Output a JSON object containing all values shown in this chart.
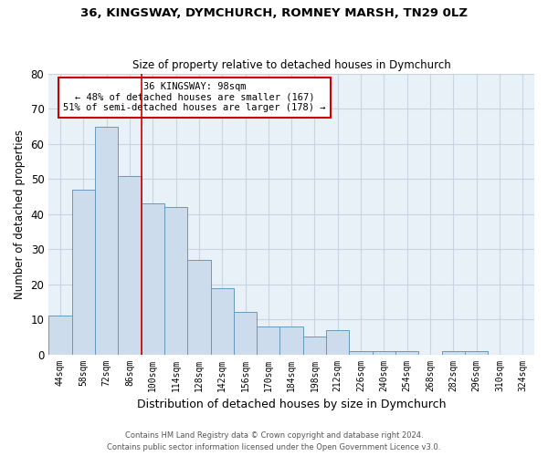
{
  "title1": "36, KINGSWAY, DYMCHURCH, ROMNEY MARSH, TN29 0LZ",
  "title2": "Size of property relative to detached houses in Dymchurch",
  "xlabel": "Distribution of detached houses by size in Dymchurch",
  "ylabel": "Number of detached properties",
  "categories": [
    "44sqm",
    "58sqm",
    "72sqm",
    "86sqm",
    "100sqm",
    "114sqm",
    "128sqm",
    "142sqm",
    "156sqm",
    "170sqm",
    "184sqm",
    "198sqm",
    "212sqm",
    "226sqm",
    "240sqm",
    "254sqm",
    "268sqm",
    "282sqm",
    "296sqm",
    "310sqm",
    "324sqm"
  ],
  "values": [
    11,
    47,
    65,
    51,
    43,
    42,
    27,
    19,
    12,
    8,
    8,
    5,
    7,
    1,
    1,
    1,
    0,
    1,
    1,
    0,
    0
  ],
  "bar_color": "#ccdcec",
  "bar_edge_color": "#6699bb",
  "red_line_x": 3.5,
  "annotation_line1": "36 KINGSWAY: 98sqm",
  "annotation_line2": "← 48% of detached houses are smaller (167)",
  "annotation_line3": "51% of semi-detached houses are larger (178) →",
  "annotation_box_color": "#ffffff",
  "annotation_box_edge": "#cc0000",
  "red_line_color": "#cc0000",
  "footer1": "Contains HM Land Registry data © Crown copyright and database right 2024.",
  "footer2": "Contains public sector information licensed under the Open Government Licence v3.0.",
  "ylim": [
    0,
    80
  ],
  "yticks": [
    0,
    10,
    20,
    30,
    40,
    50,
    60,
    70,
    80
  ],
  "background_color": "#ffffff",
  "grid_color": "#c8d4e0"
}
